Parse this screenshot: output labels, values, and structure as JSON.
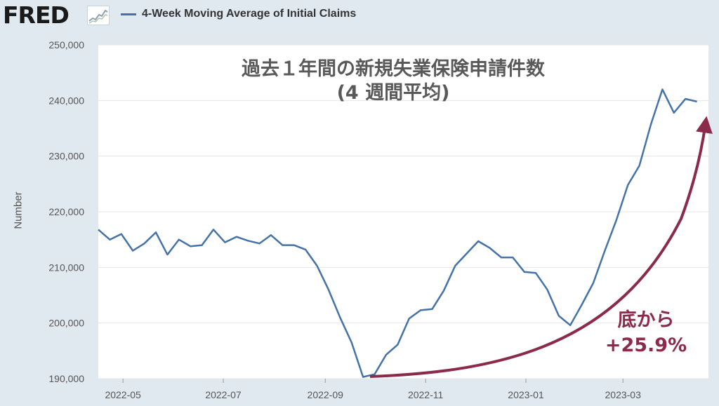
{
  "header": {
    "logo_text": "FRED",
    "logo_icon": "chart-line-icon",
    "legend_series_name": "4-Week Moving Average of Initial Claims",
    "legend_color": "#4572a7"
  },
  "annotations": {
    "title_line1": "過去１年間の新規失業保険申請件数",
    "title_line2": "(4 週間平均)",
    "gain_line1": "底から",
    "gain_line2": "+25.9%",
    "arrow_color": "#8b2a4a"
  },
  "chart_data": {
    "type": "line",
    "xlabel": "",
    "ylabel": "Number",
    "ylim": [
      190000,
      250000
    ],
    "yticks": [
      190000,
      200000,
      210000,
      220000,
      230000,
      240000,
      250000
    ],
    "ytick_labels": [
      "190,000",
      "200,000",
      "210,000",
      "220,000",
      "230,000",
      "240,000",
      "250,000"
    ],
    "xlim": [
      "2022-04-16",
      "2023-04-22"
    ],
    "xticks": [
      "2022-05-01",
      "2022-07-01",
      "2022-09-01",
      "2022-11-01",
      "2023-01-01",
      "2023-03-01"
    ],
    "xtick_labels": [
      "2022-05",
      "2022-07",
      "2022-09",
      "2022-11",
      "2023-01",
      "2023-03"
    ],
    "grid": true,
    "legend_position": "top-left",
    "series": [
      {
        "name": "4-Week Moving Average of Initial Claims",
        "color": "#4572a7",
        "x": [
          "2022-04-16",
          "2022-04-23",
          "2022-04-30",
          "2022-05-07",
          "2022-05-14",
          "2022-05-21",
          "2022-05-28",
          "2022-06-04",
          "2022-06-11",
          "2022-06-18",
          "2022-06-25",
          "2022-07-02",
          "2022-07-09",
          "2022-07-16",
          "2022-07-23",
          "2022-07-30",
          "2022-08-06",
          "2022-08-13",
          "2022-08-20",
          "2022-08-27",
          "2022-09-03",
          "2022-09-10",
          "2022-09-17",
          "2022-09-24",
          "2022-10-01",
          "2022-10-08",
          "2022-10-15",
          "2022-10-22",
          "2022-10-29",
          "2022-11-05",
          "2022-11-12",
          "2022-11-19",
          "2022-11-26",
          "2022-12-03",
          "2022-12-10",
          "2022-12-17",
          "2022-12-24",
          "2022-12-31",
          "2023-01-07",
          "2023-01-14",
          "2023-01-21",
          "2023-01-28",
          "2023-02-04",
          "2023-02-11",
          "2023-02-18",
          "2023-02-25",
          "2023-03-04",
          "2023-03-11",
          "2023-03-18",
          "2023-03-25",
          "2023-04-01",
          "2023-04-08",
          "2023-04-15"
        ],
        "values": [
          216800,
          215000,
          216000,
          213000,
          214300,
          216300,
          212300,
          215000,
          213800,
          214000,
          216800,
          214500,
          215500,
          214800,
          214300,
          215800,
          214000,
          214000,
          213200,
          210300,
          206000,
          201000,
          196500,
          190300,
          190800,
          194300,
          196100,
          200800,
          202300,
          202500,
          205800,
          210300,
          212500,
          214700,
          213500,
          211800,
          211800,
          209200,
          209000,
          206000,
          201300,
          199600,
          203300,
          207200,
          213000,
          218500,
          224800,
          228300,
          235700,
          242000,
          237800,
          240300,
          239800
        ]
      }
    ]
  }
}
